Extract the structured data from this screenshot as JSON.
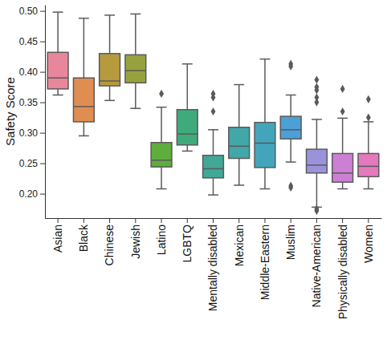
{
  "chart_data": {
    "type": "box",
    "ylabel": "Safety Score",
    "categories": [
      "Asian",
      "Black",
      "Chinese",
      "Jewish",
      "Latino",
      "LGBTQ",
      "Mentally disabled",
      "Mexican",
      "Middle-Eastern",
      "Muslim",
      "Native-American",
      "Physically disabled",
      "Women"
    ],
    "boxes": [
      {
        "whislo": 0.362,
        "q1": 0.372,
        "med": 0.39,
        "q3": 0.432,
        "whishi": 0.498,
        "fliers": []
      },
      {
        "whislo": 0.295,
        "q1": 0.318,
        "med": 0.343,
        "q3": 0.39,
        "whishi": 0.488,
        "fliers": []
      },
      {
        "whislo": 0.353,
        "q1": 0.377,
        "med": 0.385,
        "q3": 0.43,
        "whishi": 0.493,
        "fliers": []
      },
      {
        "whislo": 0.34,
        "q1": 0.382,
        "med": 0.402,
        "q3": 0.428,
        "whishi": 0.495,
        "fliers": []
      },
      {
        "whislo": 0.208,
        "q1": 0.244,
        "med": 0.255,
        "q3": 0.284,
        "whishi": 0.342,
        "fliers": [
          0.364
        ]
      },
      {
        "whislo": 0.27,
        "q1": 0.28,
        "med": 0.298,
        "q3": 0.338,
        "whishi": 0.413,
        "fliers": []
      },
      {
        "whislo": 0.198,
        "q1": 0.226,
        "med": 0.241,
        "q3": 0.263,
        "whishi": 0.305,
        "fliers": [
          0.335,
          0.358,
          0.364
        ]
      },
      {
        "whislo": 0.214,
        "q1": 0.258,
        "med": 0.278,
        "q3": 0.309,
        "whishi": 0.379,
        "fliers": []
      },
      {
        "whislo": 0.208,
        "q1": 0.243,
        "med": 0.283,
        "q3": 0.317,
        "whishi": 0.421,
        "fliers": []
      },
      {
        "whislo": 0.252,
        "q1": 0.29,
        "med": 0.305,
        "q3": 0.327,
        "whishi": 0.362,
        "fliers": [
          0.213,
          0.21,
          0.409,
          0.413
        ]
      },
      {
        "whislo": 0.178,
        "q1": 0.234,
        "med": 0.247,
        "q3": 0.273,
        "whishi": 0.322,
        "fliers": [
          0.172,
          0.175,
          0.35,
          0.358,
          0.37,
          0.375,
          0.387
        ]
      },
      {
        "whislo": 0.208,
        "q1": 0.219,
        "med": 0.234,
        "q3": 0.266,
        "whishi": 0.324,
        "fliers": [
          0.335,
          0.372
        ]
      },
      {
        "whislo": 0.208,
        "q1": 0.228,
        "med": 0.245,
        "q3": 0.266,
        "whishi": 0.318,
        "fliers": [
          0.325,
          0.355
        ]
      }
    ],
    "colors": [
      "#e8879b",
      "#e08d52",
      "#b89a3e",
      "#97a23e",
      "#5fad3d",
      "#3fab7c",
      "#40a897",
      "#41a7a9",
      "#43a5bb",
      "#4ca0d6",
      "#9a93dc",
      "#cc80d4",
      "#e479bf"
    ],
    "ylim": [
      0.16,
      0.51
    ],
    "yticks": [
      {
        "value": 0.2,
        "label": "0.20"
      },
      0.25,
      {
        "value": 0.3,
        "label": "0.30"
      },
      0.35,
      {
        "value": 0.4,
        "label": "0.40"
      },
      0.45,
      {
        "value": 0.5,
        "label": "0.50"
      }
    ]
  }
}
